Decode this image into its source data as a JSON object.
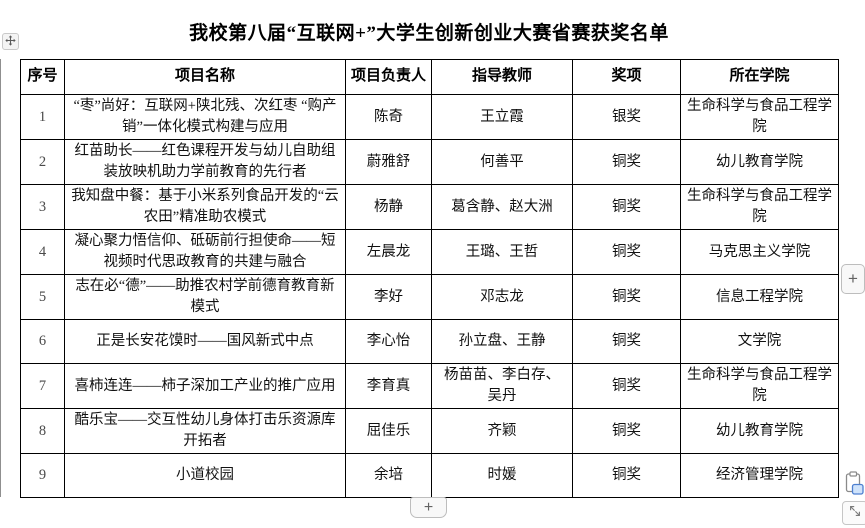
{
  "title": "我校第八届“互联网+”大学生创新创业大赛省赛获奖名单",
  "table": {
    "headers": [
      "序号",
      "项目名称",
      "项目负责人",
      "指导教师",
      "奖项",
      "所在学院"
    ],
    "column_keys": [
      "no",
      "project",
      "leader",
      "advisor",
      "award",
      "college"
    ],
    "rows": [
      [
        "1",
        "“枣”尚好：互联网+陕北残、次红枣 “购产销”一体化模式构建与应用",
        "陈奇",
        "王立霞",
        "银奖",
        "生命科学与食品工程学院"
      ],
      [
        "2",
        "红苗助长——红色课程开发与幼儿自助组装放映机助力学前教育的先行者",
        "蔚雅舒",
        "何善平",
        "铜奖",
        "幼儿教育学院"
      ],
      [
        "3",
        "我知盘中餐：基于小米系列食品开发的“云农田”精准助农模式",
        "杨静",
        "葛含静、赵大洲",
        "铜奖",
        "生命科学与食品工程学院"
      ],
      [
        "4",
        "凝心聚力悟信仰、砥砺前行担使命——短视频时代思政教育的共建与融合",
        "左晨龙",
        "王璐、王哲",
        "铜奖",
        "马克思主义学院"
      ],
      [
        "5",
        "志在必“德”——助推农村学前德育教育新模式",
        "李好",
        "邓志龙",
        "铜奖",
        "信息工程学院"
      ],
      [
        "6",
        "正是长安花馍时——国风新式中点",
        "李心怡",
        "孙立盘、王静",
        "铜奖",
        "文学院"
      ],
      [
        "7",
        "喜柿连连——柿子深加工产业的推广应用",
        "李育真",
        "杨苗苗、李白存、吴丹",
        "铜奖",
        "生命科学与食品工程学院"
      ],
      [
        "8",
        "酷乐宝——交互性幼儿身体打击乐资源库开拓者",
        "屈佳乐",
        "齐颖",
        "铜奖",
        "幼儿教育学院"
      ],
      [
        "9",
        "小道校园",
        "余培",
        "时媛",
        "铜奖",
        "经济管理学院"
      ]
    ]
  },
  "controls": {
    "move_handle_icon": "move-cross-icon",
    "add_column_label": "+",
    "add_row_label": "+",
    "paste_options_icon": "clipboard-icon",
    "resize_handle_icon": "diagonal-resize-icon"
  },
  "colors": {
    "border": "#000000",
    "text": "#111111",
    "row_number_text": "#4a4a4a",
    "control_border": "#bdbdbd",
    "control_background": "#f8f8f8",
    "paste_accent_fill": "#cfe3fb",
    "paste_accent_stroke": "#4d7fd0"
  }
}
